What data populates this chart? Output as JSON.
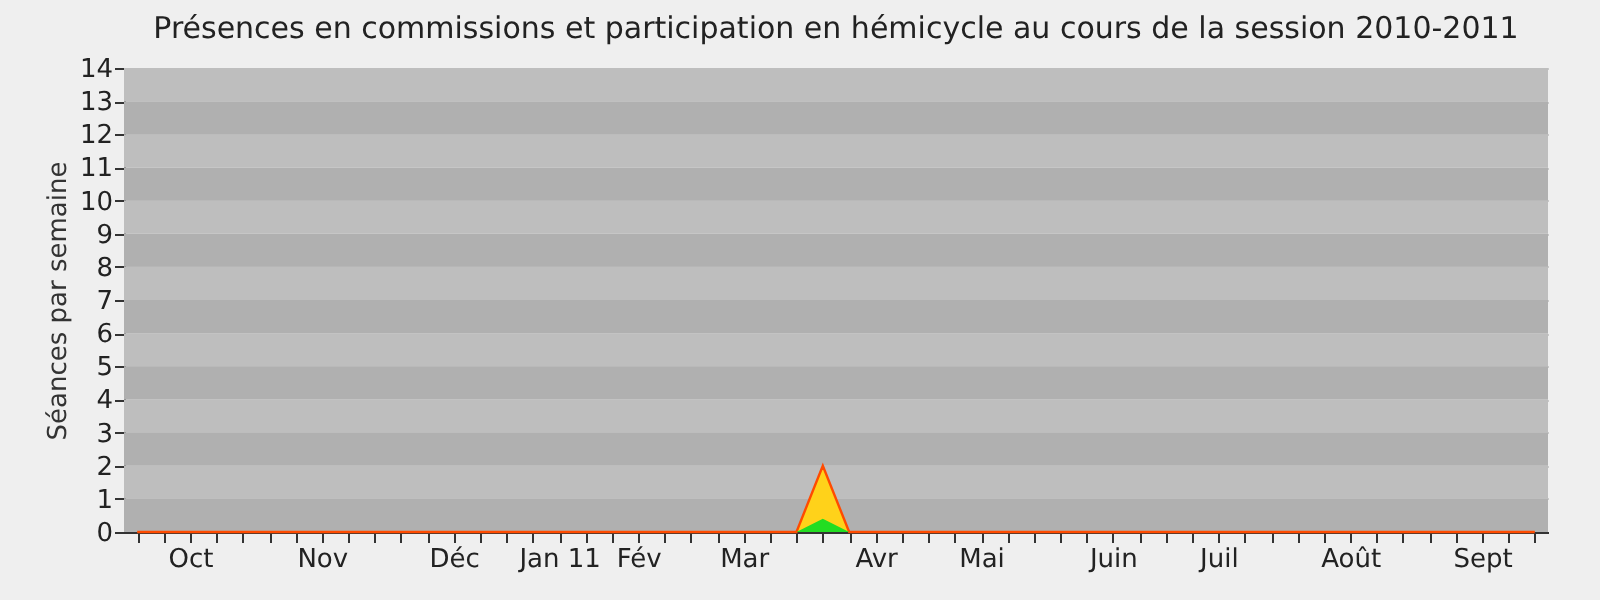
{
  "chart_data": {
    "type": "area",
    "title": "Présences en commissions et participation en hémicycle au cours de la session 2010-2011",
    "ylabel": "Séances par semaine",
    "categories": [
      null,
      null,
      "Oct",
      null,
      null,
      null,
      null,
      "Nov",
      null,
      null,
      null,
      null,
      "Déc",
      null,
      null,
      null,
      "Jan 11",
      null,
      null,
      "Fév",
      null,
      null,
      null,
      "Mar",
      null,
      null,
      null,
      null,
      "Avr",
      null,
      null,
      null,
      "Mai",
      null,
      null,
      null,
      null,
      "Juin",
      null,
      null,
      null,
      "Juil",
      null,
      null,
      null,
      null,
      "Août",
      null,
      null,
      null,
      null,
      "Sept",
      null,
      null
    ],
    "series": [
      {
        "color": "#ffd21a",
        "values": [
          0,
          0,
          0,
          0,
          0,
          0,
          0,
          0,
          0,
          0,
          0,
          0,
          0,
          0,
          0,
          0,
          0,
          0,
          0,
          0,
          0,
          0,
          0,
          0,
          0,
          0,
          2,
          0,
          0,
          0,
          0,
          0,
          0,
          0,
          0,
          0,
          0,
          0,
          0,
          0,
          0,
          0,
          0,
          0,
          0,
          0,
          0,
          0,
          0,
          0,
          0,
          0,
          0,
          0
        ]
      },
      {
        "color": "#22dd22",
        "values": [
          0,
          0,
          0,
          0,
          0,
          0,
          0,
          0,
          0,
          0,
          0,
          0,
          0,
          0,
          0,
          0,
          0,
          0,
          0,
          0,
          0,
          0,
          0,
          0,
          0,
          0,
          0.4,
          0,
          0,
          0,
          0,
          0,
          0,
          0,
          0,
          0,
          0,
          0,
          0,
          0,
          0,
          0,
          0,
          0,
          0,
          0,
          0,
          0,
          0,
          0,
          0,
          0,
          0,
          0
        ]
      }
    ],
    "ylim": [
      0,
      14
    ],
    "yticks": [
      0,
      1,
      2,
      3,
      4,
      5,
      6,
      7,
      8,
      9,
      10,
      11,
      12,
      13,
      14
    ],
    "grid": "y"
  }
}
